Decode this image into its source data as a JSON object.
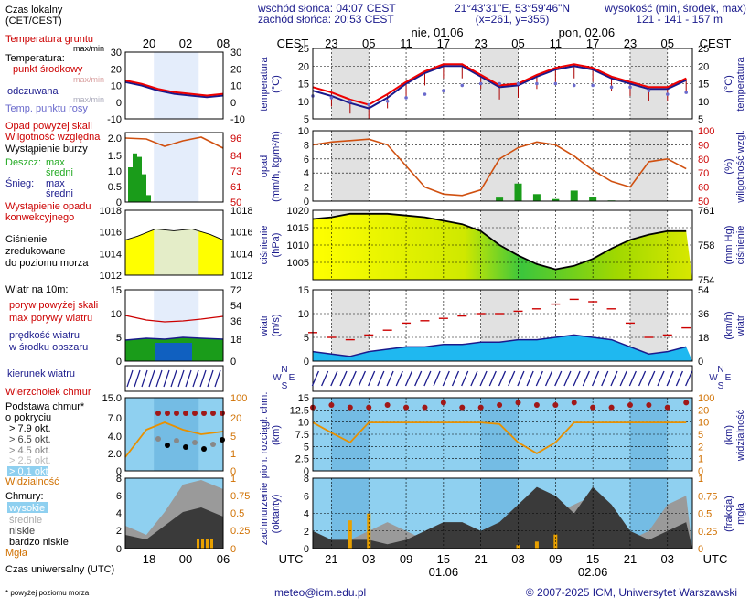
{
  "header": {
    "sunrise": "wschód słońca: 04:07 CEST",
    "sunset": "zachód słońca: 20:53 CEST",
    "coords": "21°43'31\"E, 53°59'46\"N",
    "grid": "(x=261, y=355)",
    "elev_title": "wysokość (min, środek, max)",
    "elev_values": "121 - 141 - 157 m"
  },
  "time_axis": {
    "tz_top": "CEST",
    "tz_bottom": "UTC",
    "top_hours": [
      "23",
      "05",
      "11",
      "17",
      "23",
      "05",
      "11",
      "17",
      "23",
      "05"
    ],
    "bottom_hours": [
      "21",
      "03",
      "09",
      "15",
      "21",
      "03",
      "09",
      "15",
      "21",
      "03"
    ],
    "top_dates": [
      "nie, 01.06",
      "pon, 02.06"
    ],
    "bottom_dates": [
      "01.06",
      "02.06"
    ],
    "left_top_hours": [
      "20",
      "02",
      "08"
    ],
    "left_bottom_hours": [
      "18",
      "00",
      "06"
    ]
  },
  "legend": {
    "local_time": "Czas lokalny",
    "local_time2": "(CET/CEST)",
    "ground_temp": "Temperatura gruntu",
    "ground_temp2": "max/min",
    "temperature": "Temperatura:",
    "mid_point": "punkt środkowy",
    "max_min": "max/min",
    "perceived": "odczuwana",
    "perceived_mm": "max/min",
    "dew_point": "Temp. punktu rosy",
    "precip_over": "Opad powyżej skali",
    "humidity": "Wilgotność względna",
    "storm": "Wystąpienie burzy",
    "rain": "Deszcz:",
    "rain_max": "max",
    "rain_mean": "średni",
    "snow": "Śnieg:",
    "snow_max": "max",
    "snow_mean": "średni",
    "conv": "Wystąpienie opadu",
    "conv2": "konwekcyjnego",
    "pressure": "Ciśnienie",
    "pressure2": "zredukowane",
    "pressure3": "do poziomu morza",
    "wind_10m": "Wiatr na 10m:",
    "gust_over": "poryw powyżej skali",
    "gust_max": "max porywy wiatru",
    "wind_mean": "prędkość wiatru",
    "wind_mean2": "w środku obszaru",
    "wind_dir": "kierunek wiatru",
    "cb_top": "Wierzchołek chmur",
    "cloud_base": "Podstawa chmur*",
    "cloud_base2": "o pokryciu",
    "okt1": "> 7.9 okt.",
    "okt2": "> 6.5 okt.",
    "okt3": "> 4.5 okt.",
    "okt4": "> 2.5 okt.",
    "okt5": "> 0.1 okt.",
    "visibility": "Widzialność",
    "clouds": "Chmury:",
    "high": "wysokie",
    "middle": "średnie",
    "low": "niskie",
    "very_low": "bardzo niskie",
    "fog": "Mgła",
    "utc_label": "Czas uniwersalny (UTC)",
    "footnote": "* powyżej poziomu morza"
  },
  "axis_titles": {
    "temp": "temperatura",
    "temp_unit": "(°C)",
    "precip": "opad",
    "precip_unit": "(mm/h, kg/m²/h)",
    "humidity": "wilgotność wzgl.",
    "humidity_unit": "(%)",
    "pressure": "ciśnienie",
    "pressure_unit": "(hPa)",
    "pressure_mmhg": "ciśnienie",
    "pressure_mmhg_unit": "(mm Hg)",
    "wind": "wiatr",
    "wind_unit": "(m/s)",
    "wind_kmh": "wiatr",
    "wind_kmh_unit": "(km/h)",
    "cloud_base": "pion. rozciągł. chm.",
    "cloud_base_unit": "(km)",
    "visibility": "widzialność",
    "visibility_unit": "(km)",
    "cloudiness": "zachmurzenie",
    "cloudiness_unit": "(oktanty)",
    "fog": "mgła",
    "fog_unit": "(frakcja)"
  },
  "footer": {
    "email": "meteo@icm.edu.pl",
    "copyright": "© 2007-2025 ICM, Uniwersytet Warszawski"
  },
  "chart_data": [
    {
      "type": "line",
      "panel": "temperature",
      "ylim": [
        5,
        25
      ],
      "yticks": [
        5,
        10,
        15,
        20,
        25
      ],
      "x_hours_utc": [
        18,
        21,
        24,
        27,
        30,
        33,
        36,
        39,
        42,
        45,
        48,
        51,
        54,
        57,
        60,
        63,
        66,
        69,
        72,
        75,
        78
      ],
      "series": [
        {
          "name": "punkt środkowy",
          "values": [
            14,
            12.5,
            10.5,
            9,
            12,
            15.5,
            18.5,
            20.5,
            20.5,
            17.5,
            14.5,
            15,
            17.5,
            19.5,
            20.5,
            19.5,
            17,
            15.5,
            14,
            14,
            16.5
          ]
        },
        {
          "name": "odczuwana",
          "values": [
            13,
            11.5,
            9.5,
            8,
            11,
            15,
            18,
            20,
            20,
            17,
            14,
            14.5,
            17,
            19,
            20,
            19,
            16.5,
            15,
            13.5,
            13.5,
            16
          ]
        },
        {
          "name": "Temp. punktu rosy",
          "values": [
            11.5,
            11,
            10,
            9,
            10,
            11,
            12,
            13,
            14.5,
            15,
            15,
            15,
            15,
            15,
            14.5,
            14.5,
            14,
            14,
            13,
            12,
            12.5
          ]
        }
      ]
    },
    {
      "type": "bar",
      "panel": "precipitation",
      "ylim": [
        0,
        10
      ],
      "yticks": [
        0,
        2,
        4,
        6,
        8,
        10
      ],
      "y2lim": [
        50,
        100
      ],
      "y2ticks": [
        50,
        60,
        70,
        80,
        90,
        100
      ],
      "x_hours_utc": [
        18,
        21,
        24,
        27,
        30,
        33,
        36,
        39,
        42,
        45,
        48,
        51,
        54,
        57,
        60,
        63,
        66,
        69,
        72,
        75,
        78
      ],
      "series": [
        {
          "name": "opad",
          "values": [
            0,
            0,
            0,
            0,
            0,
            0,
            0,
            0,
            0,
            0,
            0.5,
            2.5,
            1,
            0.3,
            1.5,
            0.6,
            0.1,
            0,
            0,
            0,
            0
          ]
        },
        {
          "name": "wilgotność względna",
          "values": [
            90,
            92,
            93,
            94,
            90,
            75,
            60,
            55,
            54,
            58,
            80,
            88,
            92,
            90,
            82,
            72,
            64,
            60,
            78,
            80,
            73
          ]
        }
      ]
    },
    {
      "type": "area",
      "panel": "pressure",
      "ylim": [
        1000,
        1020
      ],
      "yticks": [
        1005,
        1010,
        1015,
        1020
      ],
      "y2ticks": [
        754,
        758,
        761
      ],
      "x_hours_utc": [
        18,
        21,
        24,
        27,
        30,
        33,
        36,
        39,
        42,
        45,
        48,
        51,
        54,
        57,
        60,
        63,
        66,
        69,
        72,
        75,
        78
      ],
      "values": [
        1017.5,
        1018,
        1019,
        1019,
        1019,
        1018.5,
        1018,
        1017,
        1016,
        1014,
        1010,
        1007,
        1004.5,
        1003,
        1004,
        1006,
        1009,
        1011.5,
        1013,
        1014,
        1014
      ]
    },
    {
      "type": "area",
      "panel": "wind",
      "ylim": [
        0,
        15
      ],
      "yticks": [
        0,
        5,
        10,
        15
      ],
      "y2ticks": [
        0,
        18,
        36,
        54
      ],
      "x_hours_utc": [
        18,
        21,
        24,
        27,
        30,
        33,
        36,
        39,
        42,
        45,
        48,
        51,
        54,
        57,
        60,
        63,
        66,
        69,
        72,
        75,
        78
      ],
      "series": [
        {
          "name": "prędkość wiatru",
          "values": [
            2,
            1.5,
            1,
            2,
            2.5,
            3,
            3,
            3.5,
            3.5,
            4,
            4,
            4.5,
            4.5,
            5,
            5.5,
            5,
            4.5,
            3,
            1.5,
            2,
            3
          ]
        },
        {
          "name": "max porywy wiatru",
          "values": [
            6,
            5,
            4.5,
            5.5,
            6.5,
            8,
            8.5,
            9,
            9.5,
            10,
            10,
            10.5,
            11,
            12,
            13,
            12.5,
            11,
            8,
            5,
            5.5,
            7
          ]
        }
      ]
    },
    {
      "type": "scatter",
      "panel": "cloud_base",
      "ylim": [
        0,
        15
      ],
      "yticks": [
        0,
        2.5,
        5,
        7.5,
        10,
        12.5,
        15
      ],
      "y2ticks": [
        0,
        1,
        2,
        5,
        10,
        20,
        100
      ],
      "x_hours_utc": [
        18,
        21,
        24,
        27,
        30,
        33,
        36,
        39,
        42,
        45,
        48,
        51,
        54,
        57,
        60,
        63,
        66,
        69,
        72,
        75,
        78
      ],
      "series": [
        {
          "name": "Wierzchołek chmur",
          "values": [
            13,
            13.5,
            13,
            13,
            13.5,
            13,
            13,
            14,
            13,
            13,
            13.5,
            14,
            13.5,
            13.5,
            14,
            13,
            13,
            13.5,
            13.5,
            13,
            14
          ]
        },
        {
          "name": "Widzialność",
          "values": [
            20,
            10,
            5,
            20,
            20,
            20,
            20,
            20,
            20,
            20,
            18,
            5,
            2,
            5,
            20,
            20,
            20,
            20,
            20,
            20,
            20
          ]
        }
      ]
    },
    {
      "type": "area",
      "panel": "clouds",
      "ylim": [
        0,
        8
      ],
      "yticks": [
        0,
        2,
        4,
        6,
        8
      ],
      "y2ticks": [
        0,
        0.25,
        0.5,
        0.75,
        1
      ],
      "x_hours_utc": [
        18,
        21,
        24,
        27,
        30,
        33,
        36,
        39,
        42,
        45,
        48,
        51,
        54,
        57,
        60,
        63,
        66,
        69,
        72,
        75,
        78
      ],
      "series": [
        {
          "name": "wysokie",
          "values": [
            0,
            0,
            1,
            2,
            3,
            2,
            1,
            2,
            3,
            2,
            2,
            5,
            6,
            4,
            5,
            6,
            3,
            1,
            2,
            5,
            6
          ]
        },
        {
          "name": "niskie",
          "values": [
            2,
            1,
            1,
            1,
            0.5,
            1,
            2,
            3,
            3,
            2,
            3,
            5,
            7,
            6,
            4,
            7,
            5,
            2,
            1,
            2,
            3
          ]
        },
        {
          "name": "Mgła",
          "values": [
            0,
            0,
            0.4,
            0.5,
            0,
            0,
            0,
            0,
            0,
            0,
            0,
            0.05,
            0.1,
            0.2,
            0,
            0,
            0,
            0,
            0,
            0,
            0
          ]
        }
      ]
    }
  ]
}
